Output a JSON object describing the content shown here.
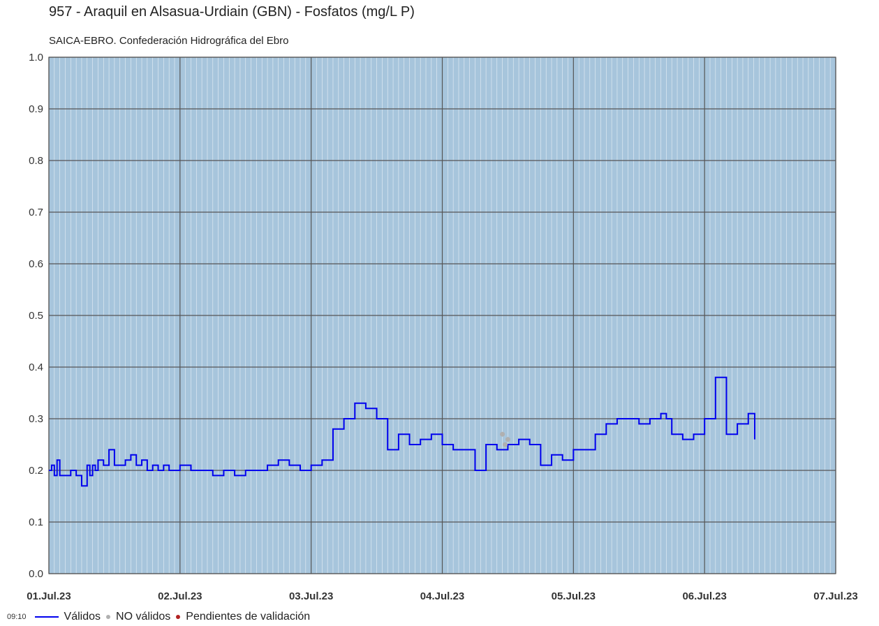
{
  "title": "957 - Araquil en Alsasua-Urdiain (GBN) - Fosfatos (mg/L P)",
  "subtitle": "SAICA-EBRO. Confederación Hidrográfica del Ebro",
  "legend": {
    "time": "09:10",
    "valid": "Válidos",
    "invalid": "NO válidos",
    "pending": "Pendientes de validación"
  },
  "colors": {
    "plot_bg": "#a7c5dc",
    "major_grid": "#555555",
    "minor_grid": "#ffffff",
    "valid_line": "#0000ee",
    "invalid_points": "#b0b0b0",
    "pending_points": "#b22222"
  },
  "chart_data": {
    "type": "line",
    "title": "957 - Araquil en Alsasua-Urdiain (GBN) - Fosfatos (mg/L P)",
    "subtitle": "SAICA-EBRO. Confederación Hidrográfica del Ebro",
    "ylim": [
      0,
      1.0
    ],
    "yticks": [
      "0.0",
      "0.1",
      "0.2",
      "0.3",
      "0.4",
      "0.5",
      "0.6",
      "0.7",
      "0.8",
      "0.9",
      "1.0"
    ],
    "xticks": [
      "01.Jul.23",
      "02.Jul.23",
      "03.Jul.23",
      "04.Jul.23",
      "05.Jul.23",
      "06.Jul.23",
      "07.Jul.23"
    ],
    "xlim": [
      "2023-07-01 00:00",
      "2023-07-07 00:00"
    ],
    "grid": true,
    "series": [
      {
        "name": "Válidos",
        "x": [
          "2023-07-01 00:00",
          "2023-07-01 00:30",
          "2023-07-01 01:00",
          "2023-07-01 01:30",
          "2023-07-01 02:00",
          "2023-07-01 03:00",
          "2023-07-01 04:00",
          "2023-07-01 05:00",
          "2023-07-01 06:00",
          "2023-07-01 07:00",
          "2023-07-01 07:30",
          "2023-07-01 08:00",
          "2023-07-01 08:30",
          "2023-07-01 09:00",
          "2023-07-01 10:00",
          "2023-07-01 11:00",
          "2023-07-01 12:00",
          "2023-07-01 13:00",
          "2023-07-01 14:00",
          "2023-07-01 15:00",
          "2023-07-01 16:00",
          "2023-07-01 17:00",
          "2023-07-01 18:00",
          "2023-07-01 19:00",
          "2023-07-01 20:00",
          "2023-07-01 21:00",
          "2023-07-01 22:00",
          "2023-07-01 23:00",
          "2023-07-02 00:00",
          "2023-07-02 02:00",
          "2023-07-02 04:00",
          "2023-07-02 06:00",
          "2023-07-02 08:00",
          "2023-07-02 10:00",
          "2023-07-02 12:00",
          "2023-07-02 14:00",
          "2023-07-02 16:00",
          "2023-07-02 18:00",
          "2023-07-02 20:00",
          "2023-07-02 22:00",
          "2023-07-03 00:00",
          "2023-07-03 02:00",
          "2023-07-03 04:00",
          "2023-07-03 06:00",
          "2023-07-03 08:00",
          "2023-07-03 10:00",
          "2023-07-03 12:00",
          "2023-07-03 14:00",
          "2023-07-03 16:00",
          "2023-07-03 18:00",
          "2023-07-03 20:00",
          "2023-07-03 22:00",
          "2023-07-04 00:00",
          "2023-07-04 02:00",
          "2023-07-04 04:00",
          "2023-07-04 06:00",
          "2023-07-04 08:00",
          "2023-07-04 10:00",
          "2023-07-04 12:00",
          "2023-07-04 14:00",
          "2023-07-04 16:00",
          "2023-07-04 18:00",
          "2023-07-04 20:00",
          "2023-07-04 22:00",
          "2023-07-05 00:00",
          "2023-07-05 02:00",
          "2023-07-05 04:00",
          "2023-07-05 06:00",
          "2023-07-05 08:00",
          "2023-07-05 10:00",
          "2023-07-05 12:00",
          "2023-07-05 14:00",
          "2023-07-05 16:00",
          "2023-07-05 17:00",
          "2023-07-05 18:00",
          "2023-07-05 20:00",
          "2023-07-05 22:00",
          "2023-07-06 00:00",
          "2023-07-06 02:00",
          "2023-07-06 04:00",
          "2023-07-06 06:00",
          "2023-07-06 08:00",
          "2023-07-06 09:10"
        ],
        "values": [
          0.2,
          0.21,
          0.19,
          0.22,
          0.19,
          0.19,
          0.2,
          0.19,
          0.17,
          0.21,
          0.19,
          0.21,
          0.2,
          0.22,
          0.21,
          0.24,
          0.21,
          0.21,
          0.22,
          0.23,
          0.21,
          0.22,
          0.2,
          0.21,
          0.2,
          0.21,
          0.2,
          0.2,
          0.21,
          0.2,
          0.2,
          0.19,
          0.2,
          0.19,
          0.2,
          0.2,
          0.21,
          0.22,
          0.21,
          0.2,
          0.21,
          0.22,
          0.28,
          0.3,
          0.33,
          0.32,
          0.3,
          0.24,
          0.27,
          0.25,
          0.26,
          0.27,
          0.25,
          0.24,
          0.24,
          0.2,
          0.25,
          0.24,
          0.25,
          0.26,
          0.25,
          0.21,
          0.23,
          0.22,
          0.24,
          0.24,
          0.27,
          0.29,
          0.3,
          0.3,
          0.29,
          0.3,
          0.31,
          0.3,
          0.27,
          0.26,
          0.27,
          0.3,
          0.38,
          0.27,
          0.29,
          0.31,
          0.26
        ]
      },
      {
        "name": "NO válidos",
        "x": [
          "2023-07-04 11:00",
          "2023-07-04 11:30",
          "2023-07-04 12:00"
        ],
        "values": [
          0.27,
          0.25,
          0.26
        ]
      }
    ]
  }
}
